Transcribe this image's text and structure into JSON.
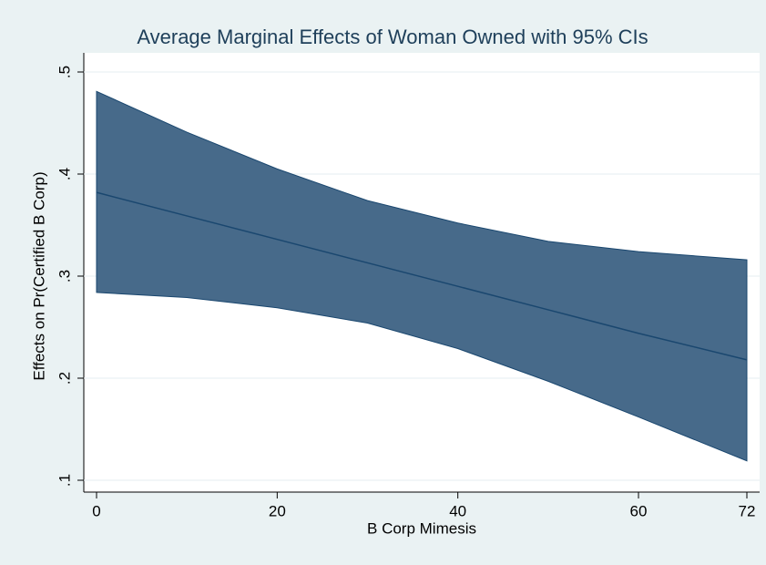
{
  "chart_data": {
    "type": "line",
    "title": "Average Marginal Effects of Woman Owned with 95% CIs",
    "x_label": "B Corp Mimesis",
    "y_label": "Effects on Pr(Certified B Corp)",
    "x": [
      0,
      10,
      20,
      30,
      40,
      50,
      60,
      72
    ],
    "series": [
      {
        "color": "#1a476f",
        "values": [
          0.382,
          0.359,
          0.336,
          0.313,
          0.29,
          0.267,
          0.244,
          0.218
        ]
      }
    ],
    "band": {
      "color": "#476a8a",
      "upper": [
        0.481,
        0.441,
        0.405,
        0.374,
        0.352,
        0.334,
        0.324,
        0.316
      ],
      "lower": [
        0.284,
        0.279,
        0.269,
        0.254,
        0.229,
        0.197,
        0.162,
        0.119
      ]
    },
    "xlim": [
      0,
      72
    ],
    "xticks": [
      0,
      20,
      40,
      60,
      72
    ],
    "ylim": [
      0.1,
      0.5
    ],
    "yticks": [
      {
        "value": 0.1,
        "label": ".1"
      },
      {
        "value": 0.2,
        "label": ".2"
      },
      {
        "value": 0.3,
        "label": ".3"
      },
      {
        "value": 0.4,
        "label": ".4"
      },
      {
        "value": 0.5,
        "label": ".5"
      }
    ],
    "grid": true
  }
}
